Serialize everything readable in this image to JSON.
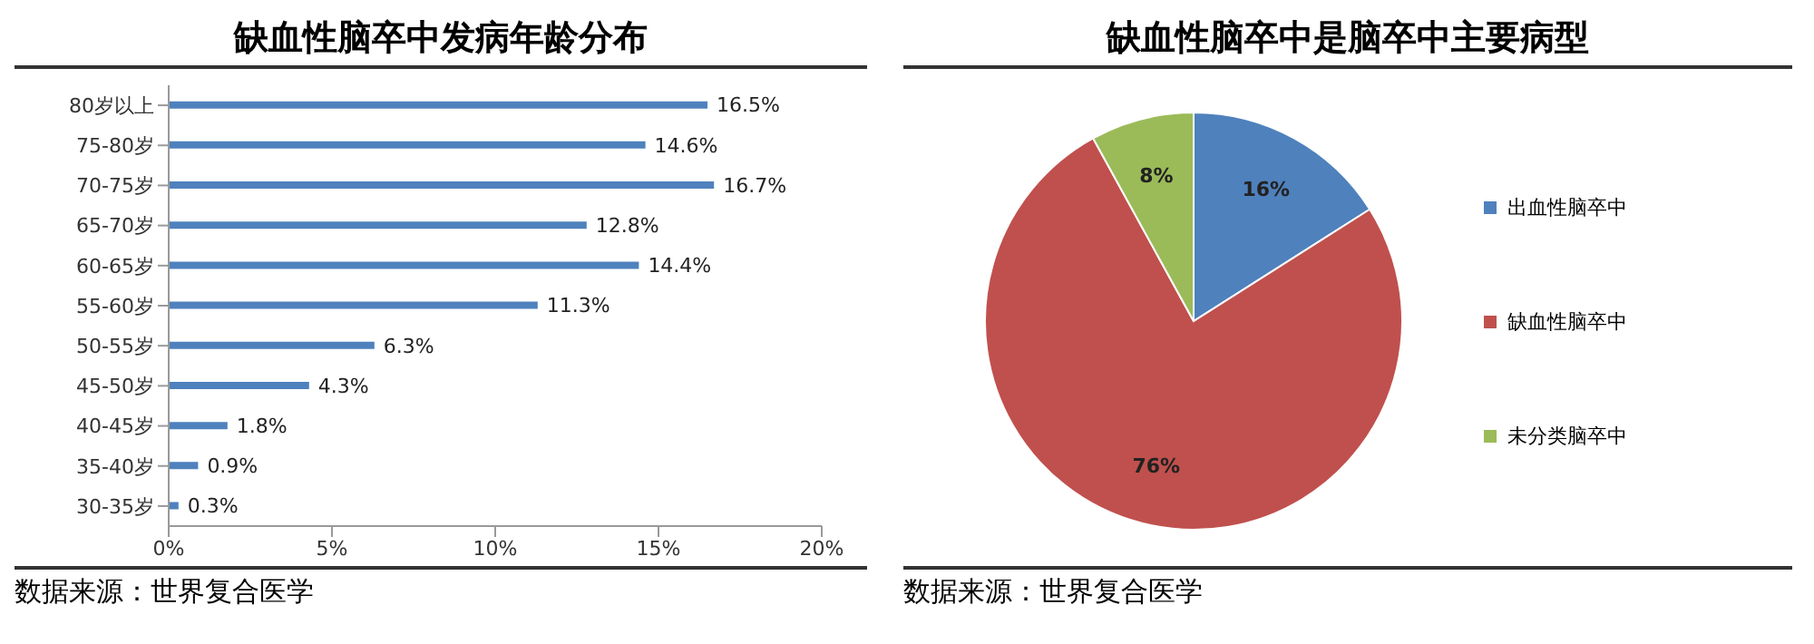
{
  "chart_data": [
    {
      "type": "bar",
      "orientation": "horizontal",
      "title": "缺血性脑卒中发病年龄分布",
      "categories": [
        "80岁以上",
        "75-80岁",
        "70-75岁",
        "65-70岁",
        "60-65岁",
        "55-60岁",
        "50-55岁",
        "45-50岁",
        "40-45岁",
        "35-40岁",
        "30-35岁"
      ],
      "values": [
        16.5,
        14.6,
        16.7,
        12.8,
        14.4,
        11.3,
        6.3,
        4.3,
        1.8,
        0.9,
        0.3
      ],
      "value_labels": [
        "16.5%",
        "14.6%",
        "16.7%",
        "12.8%",
        "14.4%",
        "11.3%",
        "6.3%",
        "4.3%",
        "1.8%",
        "0.9%",
        "0.3%"
      ],
      "color": "#4f81bd",
      "xlim": [
        0,
        20
      ],
      "xticks": [
        {
          "value": 0,
          "label": "0%"
        },
        {
          "value": 5,
          "label": "5%"
        },
        {
          "value": 10,
          "label": "10%"
        },
        {
          "value": 15,
          "label": "15%"
        },
        {
          "value": 20,
          "label": "20%"
        }
      ],
      "grid": false,
      "annotations": [
        "数据来源：世界复合医学"
      ]
    },
    {
      "type": "pie",
      "title": "缺血性脑卒中是脑卒中主要病型",
      "categories": [
        "出血性脑卒中",
        "缺血性脑卒中",
        "未分类脑卒中"
      ],
      "values": [
        16,
        76,
        8
      ],
      "value_labels": [
        "16%",
        "76%",
        "8%"
      ],
      "colors": [
        "#4f81bd",
        "#c0504d",
        "#9bbb59"
      ],
      "legend": "right",
      "annotations": [
        "数据来源：世界复合医学"
      ]
    }
  ]
}
